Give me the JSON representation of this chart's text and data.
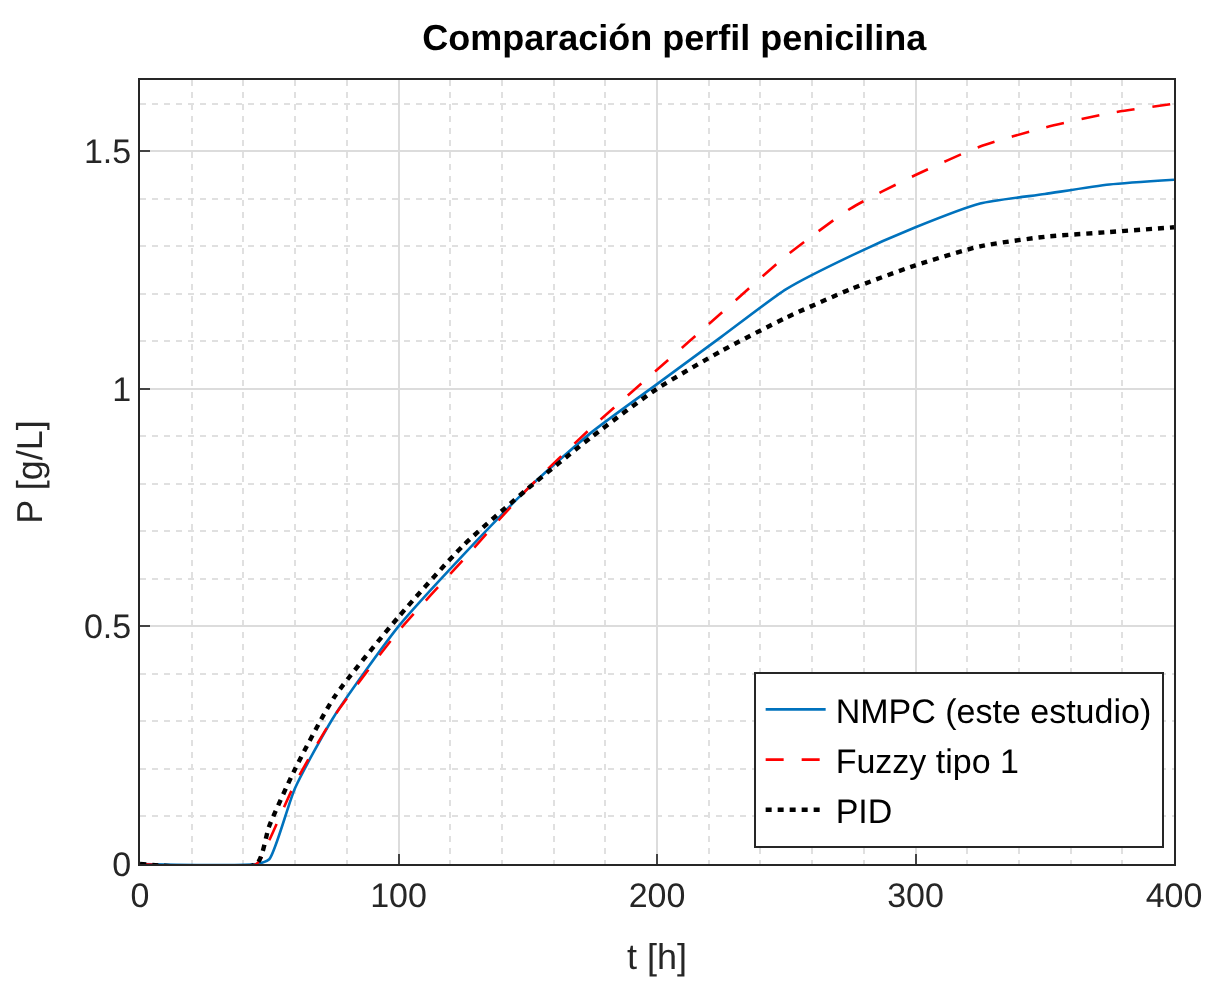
{
  "chart_data": {
    "type": "line",
    "title": "Comparación perfil penicilina",
    "xlabel": "t [h]",
    "ylabel": "P [g/L]",
    "x": [
      0,
      45,
      50,
      60,
      75,
      100,
      125,
      150,
      175,
      200,
      225,
      250,
      275,
      300,
      325,
      350,
      375,
      400
    ],
    "series": [
      {
        "name": "NMPC (este estudio)",
        "color": "#0072bd",
        "line_style": "solid",
        "values": [
          0,
          0,
          0.01,
          0.16,
          0.31,
          0.5,
          0.65,
          0.79,
          0.91,
          1.01,
          1.11,
          1.21,
          1.28,
          1.34,
          1.39,
          1.41,
          1.43,
          1.44
        ]
      },
      {
        "name": "Fuzzy tipo 1",
        "color": "#ff0000",
        "line_style": "dashed",
        "values": [
          0,
          0,
          0.05,
          0.17,
          0.31,
          0.49,
          0.64,
          0.79,
          0.92,
          1.04,
          1.16,
          1.28,
          1.38,
          1.45,
          1.51,
          1.55,
          1.58,
          1.6
        ]
      },
      {
        "name": "PID",
        "color": "#000000",
        "line_style": "dotted",
        "values": [
          0,
          0,
          0.08,
          0.2,
          0.35,
          0.52,
          0.67,
          0.79,
          0.9,
          1.0,
          1.08,
          1.15,
          1.21,
          1.26,
          1.3,
          1.32,
          1.33,
          1.34
        ]
      }
    ],
    "xlim": [
      0,
      400
    ],
    "xticks": [
      0,
      100,
      200,
      300,
      400
    ],
    "ylim": [
      0,
      1.65
    ],
    "yticks": [
      0,
      {
        "value": 0.5,
        "label": "0.5"
      },
      1,
      {
        "value": 1.5,
        "label": "1.5"
      }
    ],
    "grid": true,
    "legend": "bottom right",
    "marker": "none"
  }
}
